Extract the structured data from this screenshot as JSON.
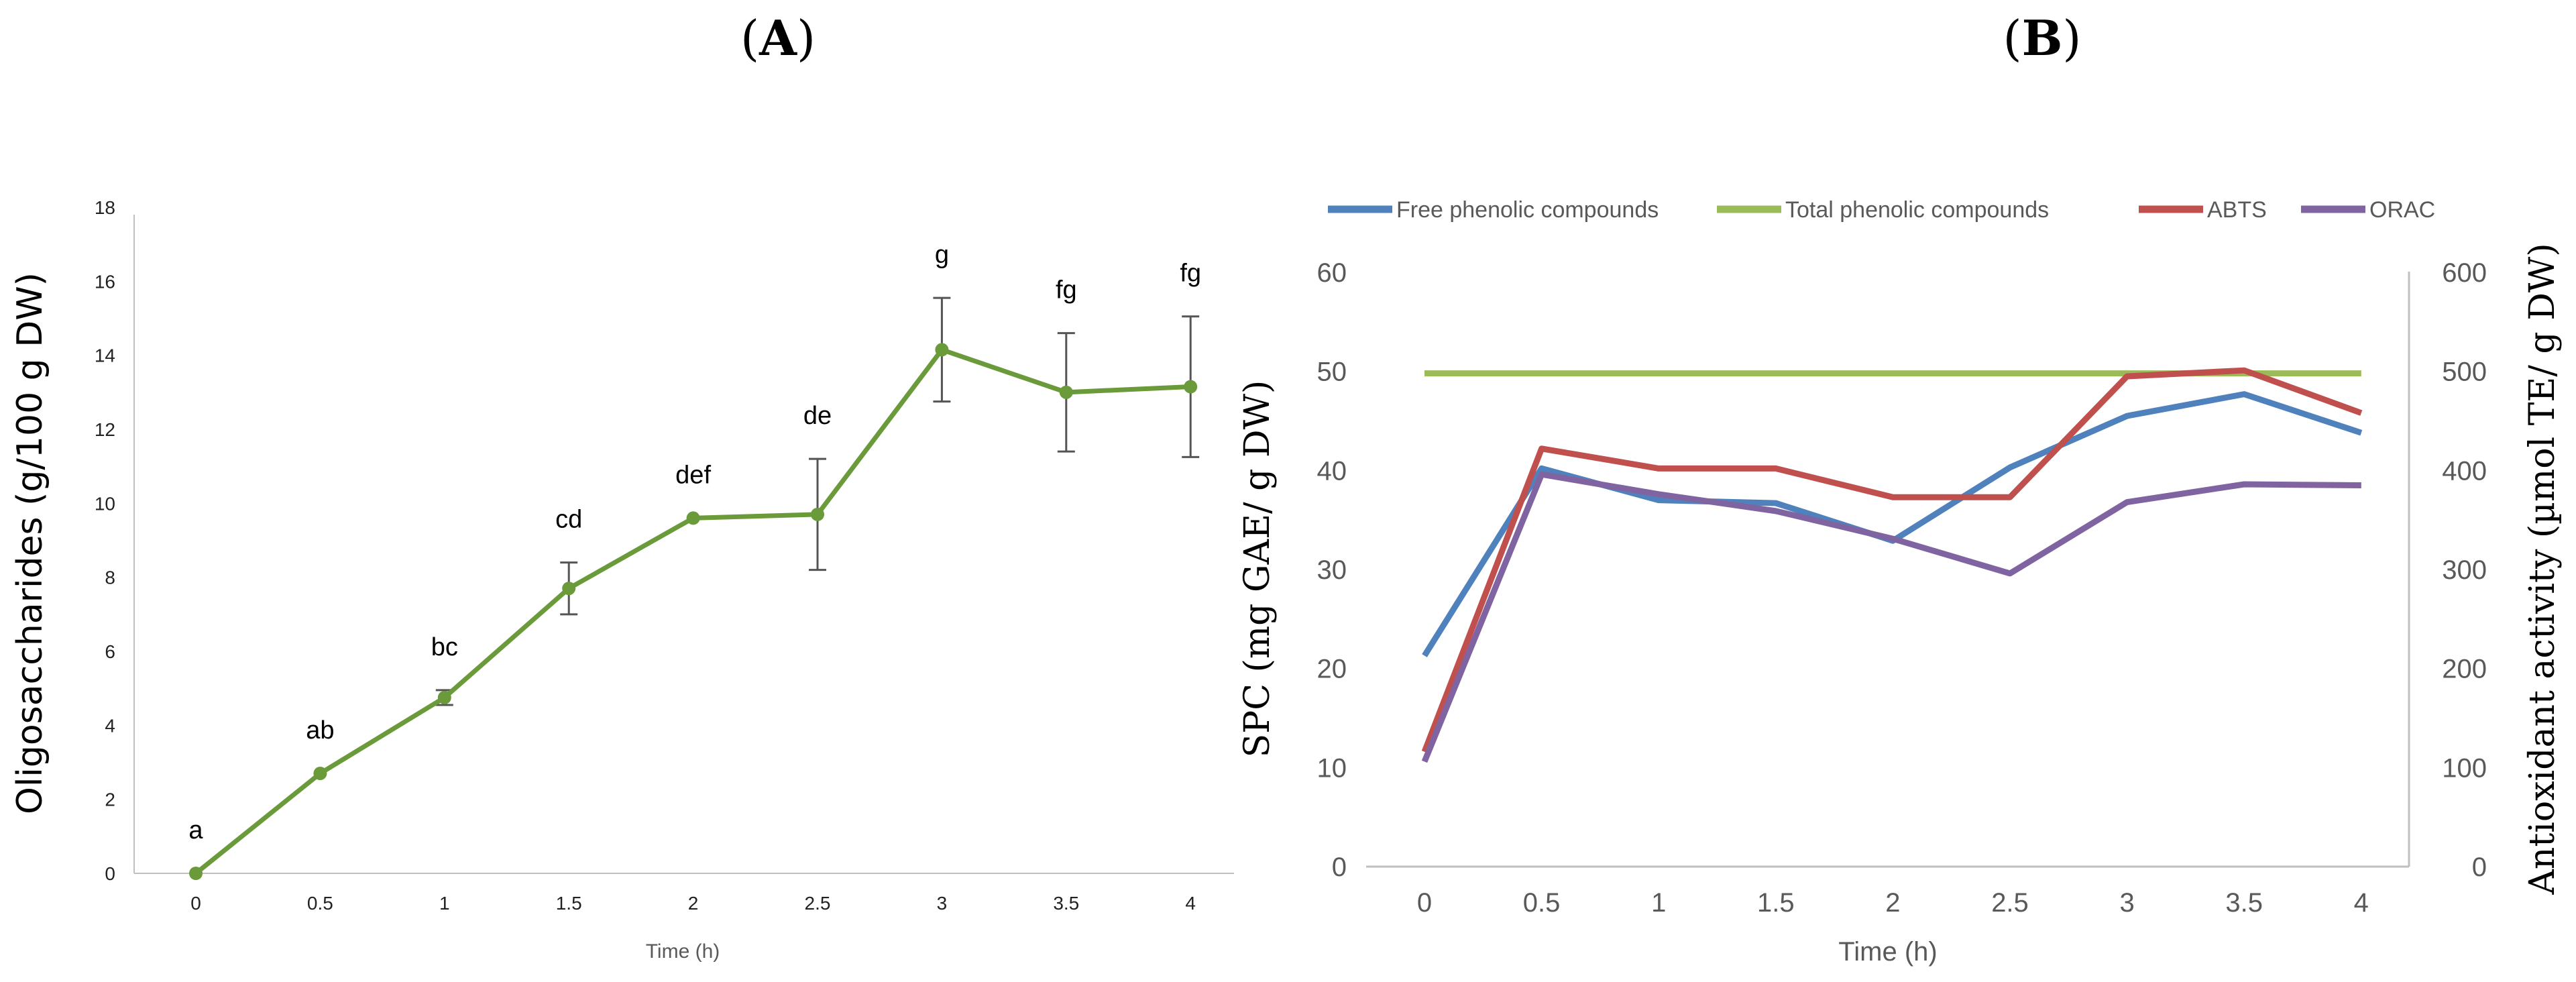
{
  "panel_labels": {
    "a": {
      "open": "(",
      "letter": "A",
      "close": ")"
    },
    "b": {
      "open": "(",
      "letter": "B",
      "close": ")"
    }
  },
  "chart_data": [
    {
      "type": "line",
      "title": "(A)",
      "xlabel": "Time (h)",
      "ylabel": "Oligosaccharides (g/100 g DW)",
      "x": [
        0,
        0.5,
        1,
        1.5,
        2,
        2.5,
        3,
        3.5,
        4
      ],
      "x_tick_labels": [
        "0",
        "0.5",
        "1",
        "1.5",
        "2",
        "2.5",
        "3",
        "3.5",
        "4"
      ],
      "y_ticks": [
        "0",
        "2",
        "4",
        "6",
        "8",
        "10",
        "12",
        "14",
        "16",
        "18"
      ],
      "ylim": [
        0,
        18
      ],
      "grid": false,
      "series": [
        {
          "name": "Oligosaccharides",
          "color": "#6a9a3a",
          "values": [
            0.0,
            2.7,
            4.75,
            7.7,
            9.6,
            9.7,
            14.15,
            13.0,
            13.15
          ],
          "errors": [
            0.0,
            0.0,
            0.2,
            0.7,
            0.0,
            1.5,
            1.4,
            1.6,
            1.9
          ],
          "significance": [
            "a",
            "ab",
            "bc",
            "cd",
            "def",
            "de",
            "g",
            "fg",
            "fg"
          ]
        }
      ]
    },
    {
      "type": "line",
      "title": "(B)",
      "xlabel": "Time (h)",
      "ylabel": "SPC (mg GAE/ g DW)",
      "y2label": "Antioxidant activity (µmol TE/ g DW)",
      "x": [
        0,
        0.5,
        1,
        1.5,
        2,
        2.5,
        3,
        3.5,
        4
      ],
      "x_tick_labels": [
        "0",
        "0.5",
        "1",
        "1.5",
        "2",
        "2.5",
        "3",
        "3.5",
        "4"
      ],
      "y_ticks": [
        "0",
        "10",
        "20",
        "30",
        "40",
        "50",
        "60"
      ],
      "y2_ticks": [
        "0",
        "100",
        "200",
        "300",
        "400",
        "500",
        "600"
      ],
      "ylim": [
        0,
        60
      ],
      "y2lim": [
        0,
        600
      ],
      "grid": false,
      "legend": "top",
      "series": [
        {
          "name": "Free phenolic compounds",
          "axis": "left",
          "color": "#4f81bd",
          "values": [
            21.3,
            40.2,
            37.0,
            36.7,
            32.9,
            40.3,
            45.5,
            47.7,
            43.8
          ]
        },
        {
          "name": "Total phenolic compounds",
          "axis": "left",
          "color": "#9bbb59",
          "values": [
            49.8,
            49.8,
            49.8,
            49.8,
            49.8,
            49.8,
            49.8,
            49.8,
            49.8
          ]
        },
        {
          "name": "ABTS",
          "axis": "right",
          "color": "#c0504d",
          "values": [
            116,
            422,
            402,
            402,
            373,
            373,
            495,
            501,
            458
          ]
        },
        {
          "name": "ORAC",
          "axis": "right",
          "color": "#8064a2",
          "values": [
            106,
            396,
            376,
            359,
            331,
            296,
            368,
            386,
            385
          ]
        }
      ]
    }
  ]
}
